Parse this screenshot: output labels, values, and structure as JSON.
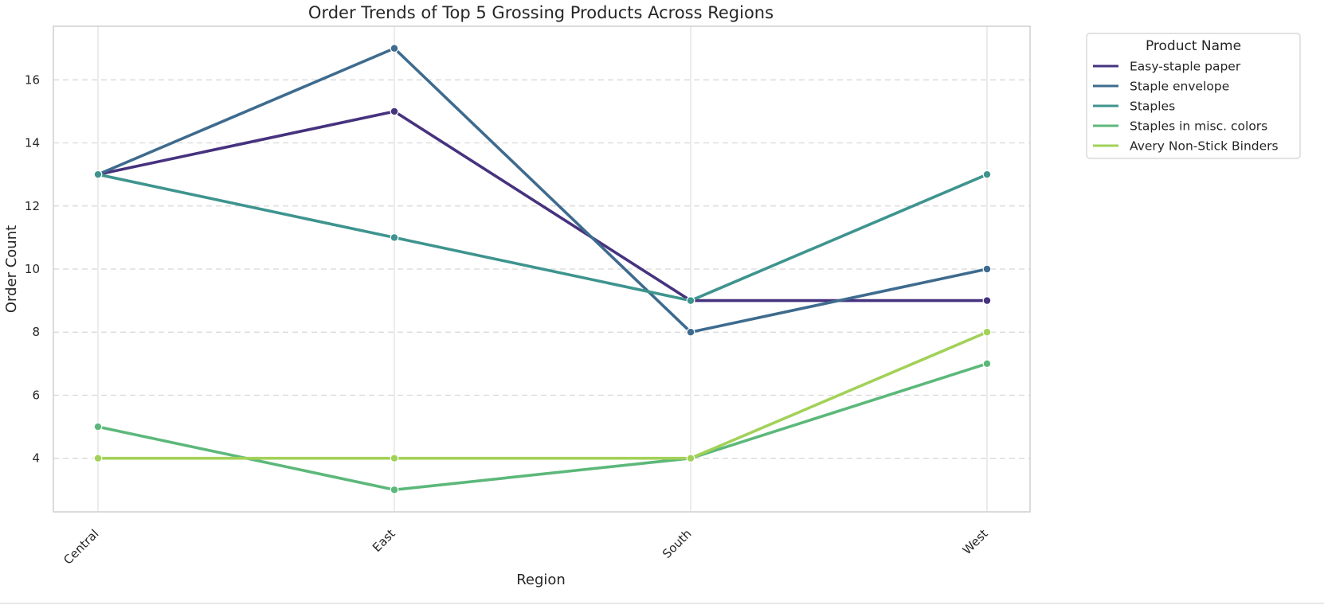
{
  "chart_data": {
    "type": "line",
    "title": "Order Trends of Top 5 Grossing Products Across Regions",
    "xlabel": "Region",
    "ylabel": "Order Count",
    "categories": [
      "Central",
      "East",
      "South",
      "West"
    ],
    "ylim": [
      2.3,
      17.7
    ],
    "yticks": [
      4,
      6,
      8,
      10,
      12,
      14,
      16
    ],
    "grid": true,
    "legend": {
      "title": "Product Name",
      "position": "outside-upper-right"
    },
    "series": [
      {
        "name": "Easy-staple paper",
        "color": "#46327e",
        "values": [
          13,
          15,
          9,
          9
        ]
      },
      {
        "name": "Staple envelope",
        "color": "#3e6b8e",
        "values": [
          13,
          17,
          8,
          10
        ]
      },
      {
        "name": "Staples",
        "color": "#3e948e",
        "values": [
          13,
          11,
          9,
          13
        ]
      },
      {
        "name": "Staples in misc. colors",
        "color": "#5cb87a",
        "values": [
          5,
          3,
          4,
          7
        ]
      },
      {
        "name": "Avery Non-Stick Binders",
        "color": "#a2d158",
        "values": [
          4,
          4,
          4,
          8
        ]
      }
    ]
  }
}
